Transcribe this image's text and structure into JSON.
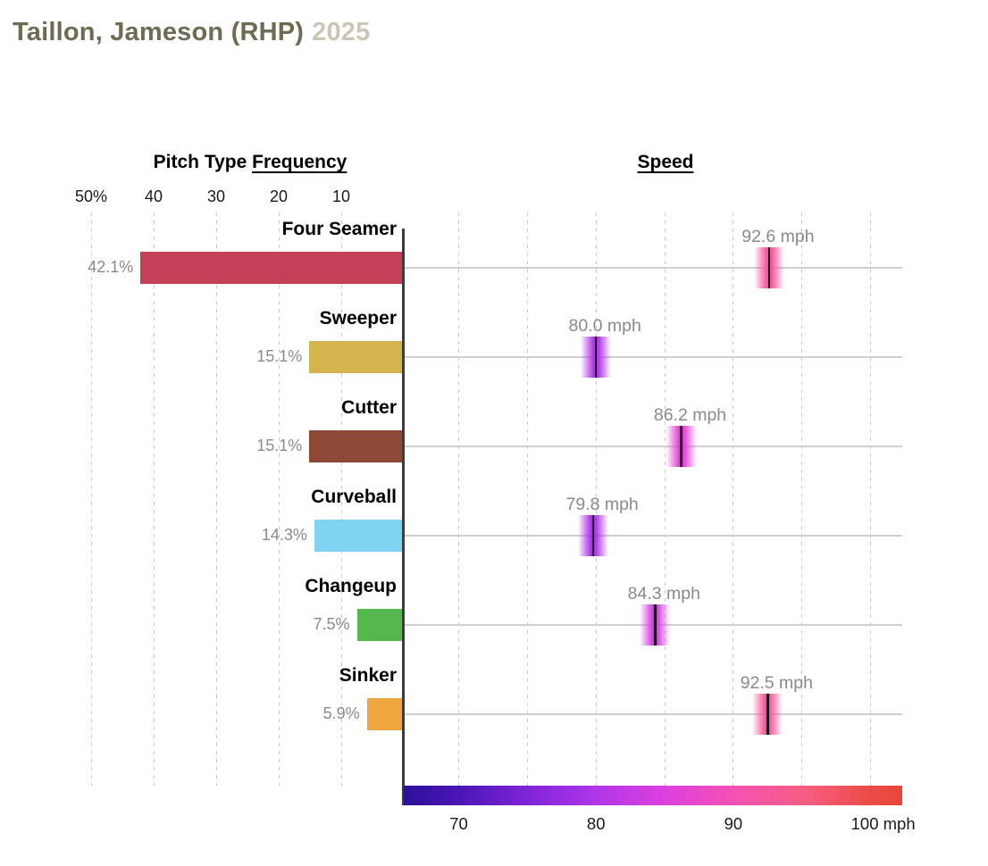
{
  "title": {
    "player": "Taillon, Jameson (RHP)",
    "season": "2025"
  },
  "chart_data": {
    "type": "bar",
    "title": "Pitch Type Frequency and Speed",
    "left_panel": {
      "header_plain": "Pitch Type ",
      "header_underlined": "Frequency",
      "axis_tick_labels": [
        "50%",
        "40",
        "30",
        "20",
        "10"
      ],
      "axis_tick_values": [
        50,
        40,
        30,
        20,
        10
      ],
      "axis_range_pct": [
        0,
        55
      ],
      "grid": true
    },
    "right_panel": {
      "header": "Speed",
      "axis_ticks": [
        {
          "value": 70,
          "label": "70"
        },
        {
          "value": 80,
          "label": "80"
        },
        {
          "value": 90,
          "label": "90"
        },
        {
          "value": 100,
          "label": "100 mph"
        }
      ],
      "gridline_values": [
        70,
        75,
        80,
        85,
        90,
        95,
        100
      ],
      "axis_range_mph": [
        66,
        102.3
      ],
      "grid": true
    },
    "pitches": [
      {
        "name": "Four Seamer",
        "frequency_pct": 42.1,
        "frequency_label": "42.1%",
        "speed_mph": 92.6,
        "speed_label": "92.6 mph",
        "bar_color": "#c53f56"
      },
      {
        "name": "Sweeper",
        "frequency_pct": 15.1,
        "frequency_label": "15.1%",
        "speed_mph": 80.0,
        "speed_label": "80.0 mph",
        "bar_color": "#d3b34b"
      },
      {
        "name": "Cutter",
        "frequency_pct": 15.1,
        "frequency_label": "15.1%",
        "speed_mph": 86.2,
        "speed_label": "86.2 mph",
        "bar_color": "#8d4936"
      },
      {
        "name": "Curveball",
        "frequency_pct": 14.3,
        "frequency_label": "14.3%",
        "speed_mph": 79.8,
        "speed_label": "79.8 mph",
        "bar_color": "#7ed3f0"
      },
      {
        "name": "Changeup",
        "frequency_pct": 7.5,
        "frequency_label": "7.5%",
        "speed_mph": 84.3,
        "speed_label": "84.3 mph",
        "bar_color": "#55b74c"
      },
      {
        "name": "Sinker",
        "frequency_pct": 5.9,
        "frequency_label": "5.9%",
        "speed_mph": 92.5,
        "speed_label": "92.5 mph",
        "bar_color": "#f0a63e"
      }
    ],
    "colormap": {
      "stops": [
        {
          "pos": 0.0,
          "color": "#2a1197"
        },
        {
          "pos": 0.11,
          "color": "#4b15b5"
        },
        {
          "pos": 0.248,
          "color": "#7e24d8"
        },
        {
          "pos": 0.386,
          "color": "#b136e9"
        },
        {
          "pos": 0.523,
          "color": "#dc40dd"
        },
        {
          "pos": 0.661,
          "color": "#f351b4"
        },
        {
          "pos": 0.799,
          "color": "#f75e85"
        },
        {
          "pos": 0.937,
          "color": "#eb4c47"
        },
        {
          "pos": 1.0,
          "color": "#e74737"
        }
      ]
    }
  }
}
